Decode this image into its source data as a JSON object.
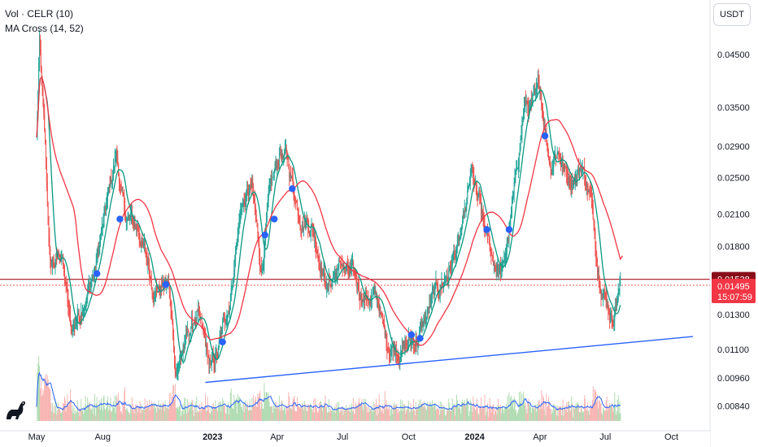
{
  "header": {
    "indicator_vol": "Vol · CELR (10)",
    "indicator_ma": "MA Cross (14, 52)",
    "currency_button": "USDT"
  },
  "icons": {
    "logo": "tradingview-dino-icon"
  },
  "colors": {
    "candle_up": "#26a69a",
    "candle_down": "#ef5350",
    "ma_fast": "#089981",
    "ma_slow": "#f23645",
    "cross_marker": "#2962ff",
    "trendline": "#2962ff",
    "resistance": "#b22833",
    "vol_up": "#a5d6a7",
    "vol_down": "#f7a9a7",
    "vol_ma": "#2962ff",
    "current_price_bg": "#f23645",
    "level_bg": "#880e1a"
  },
  "chart_data": {
    "type": "candlestick",
    "symbol": "CELR",
    "quote": "USDT",
    "scale": "log",
    "ylim": [
      0.0077,
      0.052
    ],
    "y_ticks": [
      "0.04500",
      "0.03500",
      "0.02900",
      "0.02500",
      "0.02100",
      "0.01800",
      "0.01300",
      "0.01100",
      "0.00960",
      "0.00840"
    ],
    "x_ticks": [
      "May",
      "Aug",
      "2023",
      "Apr",
      "Jul",
      "Oct",
      "2024",
      "Apr",
      "Jul",
      "Oct"
    ],
    "price_path": [
      [
        "2022-05-01",
        0.03
      ],
      [
        "2022-05-05",
        0.047
      ],
      [
        "2022-05-12",
        0.03
      ],
      [
        "2022-05-20",
        0.016
      ],
      [
        "2022-06-05",
        0.0175
      ],
      [
        "2022-06-18",
        0.0118
      ],
      [
        "2022-07-05",
        0.014
      ],
      [
        "2022-07-20",
        0.0158
      ],
      [
        "2022-08-10",
        0.023
      ],
      [
        "2022-08-20",
        0.028
      ],
      [
        "2022-09-01",
        0.0205
      ],
      [
        "2022-09-20",
        0.0195
      ],
      [
        "2022-10-10",
        0.015
      ],
      [
        "2022-11-01",
        0.015
      ],
      [
        "2022-11-10",
        0.01
      ],
      [
        "2022-12-10",
        0.013
      ],
      [
        "2022-12-30",
        0.0098
      ],
      [
        "2023-01-10",
        0.011
      ],
      [
        "2023-01-25",
        0.014
      ],
      [
        "2023-02-10",
        0.022
      ],
      [
        "2023-02-25",
        0.0235
      ],
      [
        "2023-03-10",
        0.016
      ],
      [
        "2023-03-20",
        0.022
      ],
      [
        "2023-04-05",
        0.028
      ],
      [
        "2023-04-15",
        0.027
      ],
      [
        "2023-05-01",
        0.0215
      ],
      [
        "2023-05-20",
        0.02
      ],
      [
        "2023-06-10",
        0.015
      ],
      [
        "2023-06-30",
        0.0165
      ],
      [
        "2023-07-25",
        0.0145
      ],
      [
        "2023-08-20",
        0.0138
      ],
      [
        "2023-08-31",
        0.0113
      ],
      [
        "2023-09-25",
        0.0112
      ],
      [
        "2023-10-15",
        0.0117
      ],
      [
        "2023-11-05",
        0.014
      ],
      [
        "2023-11-25",
        0.016
      ],
      [
        "2023-12-15",
        0.019
      ],
      [
        "2023-12-28",
        0.025
      ],
      [
        "2024-01-10",
        0.0205
      ],
      [
        "2024-01-25",
        0.017
      ],
      [
        "2024-02-10",
        0.016
      ],
      [
        "2024-02-25",
        0.023
      ],
      [
        "2024-03-10",
        0.0355
      ],
      [
        "2024-03-25",
        0.035
      ],
      [
        "2024-04-01",
        0.038
      ],
      [
        "2024-04-15",
        0.027
      ],
      [
        "2024-04-25",
        0.029
      ],
      [
        "2024-05-10",
        0.025
      ],
      [
        "2024-05-30",
        0.0265
      ],
      [
        "2024-06-10",
        0.023
      ],
      [
        "2024-06-20",
        0.017
      ],
      [
        "2024-07-01",
        0.0145
      ],
      [
        "2024-07-10",
        0.013
      ],
      [
        "2024-07-22",
        0.015
      ]
    ],
    "ma_fast_period": 14,
    "ma_slow_period": 52,
    "ma_slow_end": [
      "2024-07-25",
      0.0172
    ],
    "cross_points": [
      [
        "2022-07-24",
        0.0158
      ],
      [
        "2022-08-25",
        0.0205
      ],
      [
        "2022-10-28",
        0.015
      ],
      [
        "2023-01-15",
        0.0114
      ],
      [
        "2023-03-15",
        0.019
      ],
      [
        "2023-03-28",
        0.0205
      ],
      [
        "2023-04-22",
        0.0237
      ],
      [
        "2023-10-05",
        0.0118
      ],
      [
        "2023-10-17",
        0.0116
      ],
      [
        "2024-01-18",
        0.0195
      ],
      [
        "2024-02-18",
        0.0195
      ],
      [
        "2024-04-08",
        0.0305
      ]
    ],
    "trendline": [
      [
        "2022-12-22",
        0.0094
      ],
      [
        "2024-10-31",
        0.0117
      ]
    ],
    "resistance_level": 0.01538,
    "resistance_label": "0.01538",
    "last_price": 0.01495,
    "last_price_label": "0.01495",
    "countdown": "15:07:59"
  }
}
